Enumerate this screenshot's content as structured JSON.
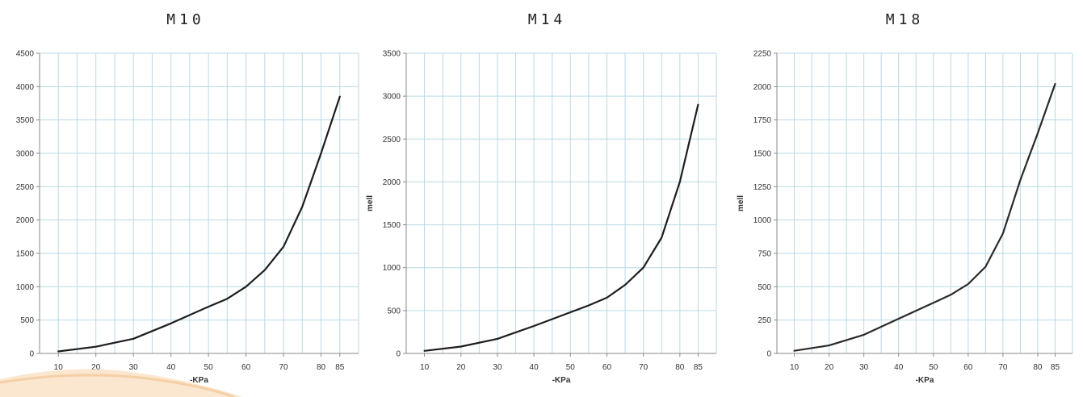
{
  "chart_data": [
    {
      "type": "line",
      "title": "M10",
      "xlabel": "-KPa",
      "ylabel": "",
      "x": [
        10,
        20,
        30,
        40,
        50,
        55,
        60,
        65,
        70,
        75,
        80,
        85
      ],
      "series": [
        {
          "values": [
            30,
            100,
            220,
            450,
            700,
            820,
            1000,
            1250,
            1600,
            2200,
            3000,
            3850
          ]
        }
      ],
      "xticks": [
        "10",
        "20",
        "30",
        "40",
        "50",
        "60",
        "70",
        "80",
        "85"
      ],
      "xtick_values": [
        10,
        20,
        30,
        40,
        50,
        60,
        70,
        80,
        85
      ],
      "yticks": [
        "0",
        "500",
        "1000",
        "1500",
        "2000",
        "2500",
        "3000",
        "3500",
        "4000",
        "4500"
      ],
      "ylim": [
        0,
        4500
      ],
      "xlim": [
        5,
        90
      ],
      "grid": true,
      "line_color": "#1e1e1e",
      "grid_color": "#b9d9e6"
    },
    {
      "type": "line",
      "title": "M14",
      "xlabel": "-KPa",
      "ylabel": "mell",
      "x": [
        10,
        20,
        30,
        40,
        50,
        55,
        60,
        65,
        70,
        75,
        80,
        85
      ],
      "series": [
        {
          "values": [
            30,
            80,
            170,
            320,
            480,
            560,
            650,
            800,
            1000,
            1350,
            2000,
            2900
          ]
        }
      ],
      "xticks": [
        "10",
        "20",
        "30",
        "40",
        "50",
        "60",
        "70",
        "80",
        "85"
      ],
      "xtick_values": [
        10,
        20,
        30,
        40,
        50,
        60,
        70,
        80,
        85
      ],
      "yticks": [
        "0",
        "500",
        "1000",
        "1500",
        "2000",
        "2500",
        "3000",
        "3500"
      ],
      "ylim": [
        0,
        3500
      ],
      "xlim": [
        5,
        90
      ],
      "grid": true,
      "line_color": "#1e1e1e",
      "grid_color": "#b9d9e6"
    },
    {
      "type": "line",
      "title": "M18",
      "xlabel": "-KPa",
      "ylabel": "mell",
      "x": [
        10,
        20,
        30,
        40,
        50,
        55,
        60,
        65,
        70,
        75,
        80,
        85
      ],
      "series": [
        {
          "values": [
            20,
            60,
            140,
            260,
            380,
            440,
            520,
            650,
            900,
            1300,
            1650,
            2020
          ]
        }
      ],
      "xticks": [
        "10",
        "20",
        "30",
        "40",
        "50",
        "60",
        "70",
        "80",
        "85"
      ],
      "xtick_values": [
        10,
        20,
        30,
        40,
        50,
        60,
        70,
        80,
        85
      ],
      "yticks": [
        "0",
        "250",
        "500",
        "750",
        "1000",
        "1250",
        "1500",
        "1750",
        "2000",
        "2250"
      ],
      "ylim": [
        0,
        2250
      ],
      "xlim": [
        5,
        90
      ],
      "grid": true,
      "line_color": "#2a2a2a",
      "grid_color": "#b9d9e6"
    }
  ]
}
